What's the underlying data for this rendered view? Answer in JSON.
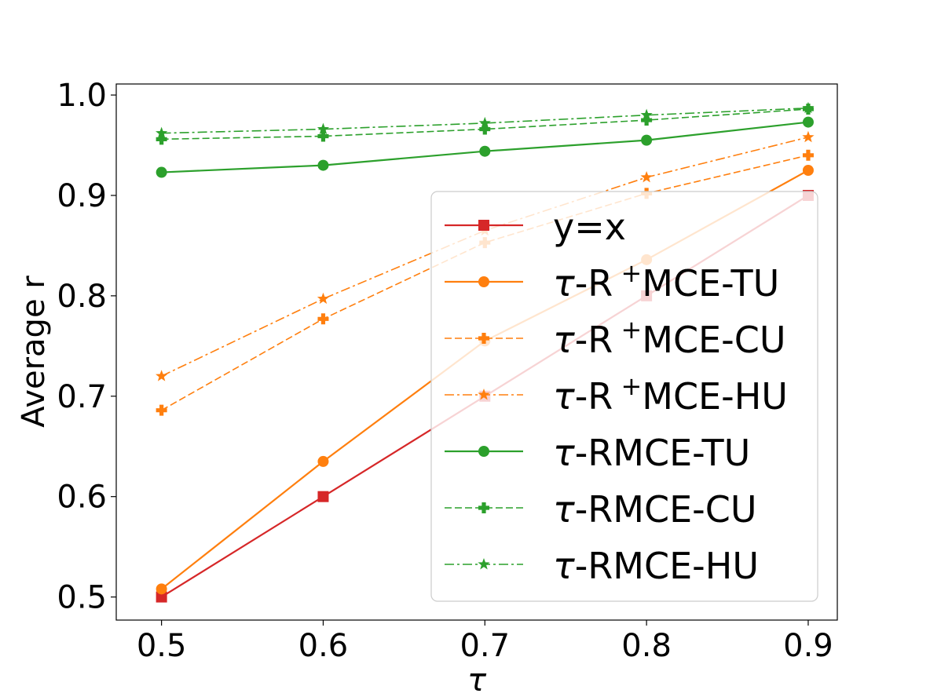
{
  "chart_data": {
    "type": "line",
    "title": "",
    "xlabel": "τ",
    "ylabel": "Average r",
    "x": [
      0.5,
      0.6,
      0.7,
      0.8,
      0.9
    ],
    "xtick_labels": [
      "0.5",
      "0.6",
      "0.7",
      "0.8",
      "0.9"
    ],
    "ytick_labels": [
      "0.5",
      "0.6",
      "0.7",
      "0.8",
      "0.9",
      "1.0"
    ],
    "yticks": [
      0.5,
      0.6,
      0.7,
      0.8,
      0.9,
      1.0
    ],
    "xlim": [
      0.472,
      0.918
    ],
    "ylim": [
      0.477,
      1.011
    ],
    "grid": false,
    "legend_position": "right",
    "series": [
      {
        "name": "y=x",
        "color": "#d62728",
        "style": "solid",
        "marker": "square",
        "values": [
          0.5,
          0.6,
          0.7,
          0.8,
          0.9
        ]
      },
      {
        "name": "τ-R⁺MCE-TU",
        "prefix": "τ",
        "base": "-R",
        "sup": "+",
        "rest": "MCE-TU",
        "color": "#ff7f0e",
        "style": "solid",
        "marker": "circle",
        "values": [
          0.508,
          0.635,
          0.755,
          0.836,
          0.925
        ]
      },
      {
        "name": "τ-R⁺MCE-CU",
        "prefix": "τ",
        "base": "-R",
        "sup": "+",
        "rest": "MCE-CU",
        "color": "#ff7f0e",
        "style": "dashed",
        "marker": "plus",
        "values": [
          0.686,
          0.777,
          0.853,
          0.902,
          0.94
        ]
      },
      {
        "name": "τ-R⁺MCE-HU",
        "prefix": "τ",
        "base": "-R",
        "sup": "+",
        "rest": "MCE-HU",
        "color": "#ff7f0e",
        "style": "dashdot",
        "marker": "star",
        "values": [
          0.72,
          0.797,
          0.865,
          0.918,
          0.958
        ]
      },
      {
        "name": "τ-RMCE-TU",
        "prefix": "τ",
        "base": "-RMCE-TU",
        "color": "#2ca02c",
        "style": "solid",
        "marker": "circle",
        "values": [
          0.923,
          0.93,
          0.944,
          0.955,
          0.973
        ]
      },
      {
        "name": "τ-RMCE-CU",
        "prefix": "τ",
        "base": "-RMCE-CU",
        "color": "#2ca02c",
        "style": "dashed",
        "marker": "plus",
        "values": [
          0.956,
          0.959,
          0.966,
          0.975,
          0.986
        ]
      },
      {
        "name": "τ-RMCE-HU",
        "prefix": "τ",
        "base": "-RMCE-HU",
        "color": "#2ca02c",
        "style": "dashdot",
        "marker": "star",
        "values": [
          0.962,
          0.966,
          0.972,
          0.98,
          0.987
        ]
      }
    ]
  }
}
